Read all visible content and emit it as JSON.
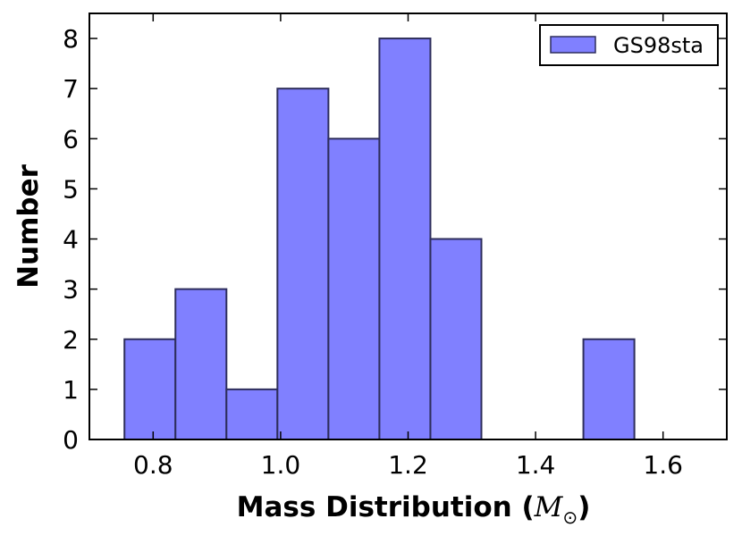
{
  "chart_data": {
    "type": "bar",
    "subtype": "histogram",
    "title": "",
    "xlabel_prefix": "Mass Distribution (",
    "xlabel_symbol": "M",
    "xlabel_subscript": "⊙",
    "xlabel_suffix": ")",
    "ylabel": "Number",
    "xlim": [
      0.7,
      1.7
    ],
    "ylim": [
      0,
      8.5
    ],
    "xticks": [
      0.8,
      1.0,
      1.2,
      1.4,
      1.6
    ],
    "xtick_labels": [
      "0.8",
      "1.0",
      "1.2",
      "1.4",
      "1.6"
    ],
    "yticks": [
      0,
      1,
      2,
      3,
      4,
      5,
      6,
      7,
      8
    ],
    "ytick_labels": [
      "0",
      "1",
      "2",
      "3",
      "4",
      "5",
      "6",
      "7",
      "8"
    ],
    "bar_color": "#8080ff",
    "edge_color": "#2e2e5c",
    "legend": {
      "label": "GS98sta",
      "position": "top-right"
    },
    "series": [
      {
        "name": "GS98sta",
        "bins": [
          {
            "left": 0.755,
            "right": 0.835,
            "count": 2
          },
          {
            "left": 0.835,
            "right": 0.915,
            "count": 3
          },
          {
            "left": 0.915,
            "right": 0.995,
            "count": 1
          },
          {
            "left": 0.995,
            "right": 1.075,
            "count": 7
          },
          {
            "left": 1.075,
            "right": 1.155,
            "count": 6
          },
          {
            "left": 1.155,
            "right": 1.235,
            "count": 8
          },
          {
            "left": 1.235,
            "right": 1.315,
            "count": 4
          },
          {
            "left": 1.475,
            "right": 1.555,
            "count": 2
          }
        ]
      }
    ]
  }
}
